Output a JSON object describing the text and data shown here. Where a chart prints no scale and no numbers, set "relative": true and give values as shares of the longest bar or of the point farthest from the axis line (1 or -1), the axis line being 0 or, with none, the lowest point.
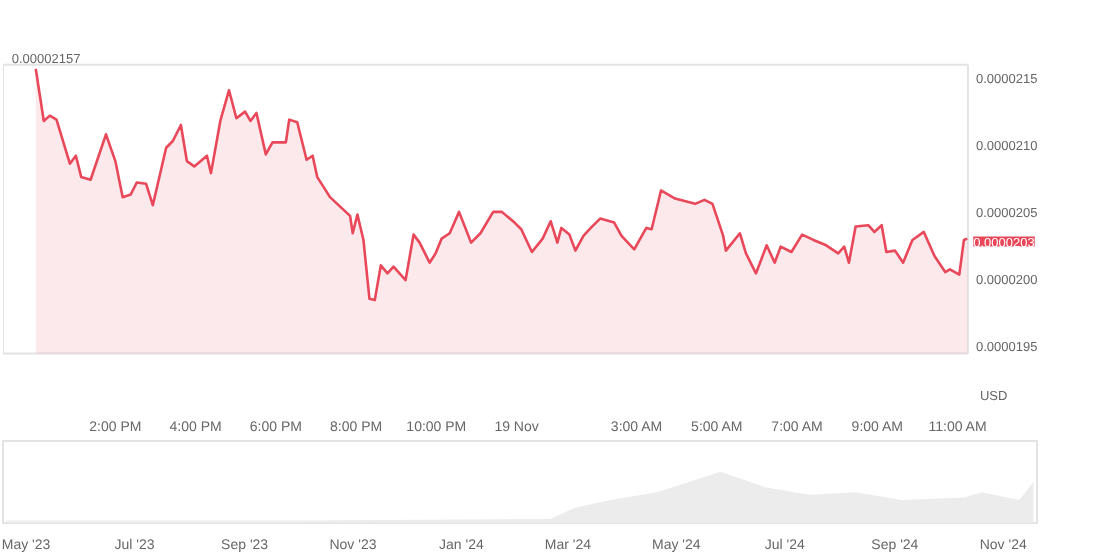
{
  "chart_data": [
    {
      "type": "area",
      "x": [
        "2024-11-18T12:01",
        "2024-11-18T12:13",
        "2024-11-18T12:22",
        "2024-11-18T12:32",
        "2024-11-18T12:52",
        "2024-11-18T13:01",
        "2024-11-18T13:09",
        "2024-11-18T13:23",
        "2024-11-18T13:46",
        "2024-11-18T14:00",
        "2024-11-18T14:11",
        "2024-11-18T14:23",
        "2024-11-18T14:32",
        "2024-11-18T14:46",
        "2024-11-18T14:56",
        "2024-11-18T15:16",
        "2024-11-18T15:26",
        "2024-11-18T15:38",
        "2024-11-18T15:47",
        "2024-11-18T15:58",
        "2024-11-18T16:17",
        "2024-11-18T16:23",
        "2024-11-18T16:37",
        "2024-11-18T16:50",
        "2024-11-18T17:01",
        "2024-11-18T17:14",
        "2024-11-18T17:22",
        "2024-11-18T17:31",
        "2024-11-18T17:45",
        "2024-11-18T17:55",
        "2024-11-18T18:15",
        "2024-11-18T18:20",
        "2024-11-18T18:32",
        "2024-11-18T18:46",
        "2024-11-18T18:55",
        "2024-11-18T19:02",
        "2024-11-18T19:21",
        "2024-11-18T19:51",
        "2024-11-18T19:55",
        "2024-11-18T20:02",
        "2024-11-18T20:11",
        "2024-11-18T20:20",
        "2024-11-18T20:28",
        "2024-11-18T20:37",
        "2024-11-18T20:47",
        "2024-11-18T20:56",
        "2024-11-18T21:14",
        "2024-11-18T21:26",
        "2024-11-18T21:35",
        "2024-11-18T21:50",
        "2024-11-18T21:59",
        "2024-11-18T22:08",
        "2024-11-18T22:20",
        "2024-11-18T22:34",
        "2024-11-18T22:52",
        "2024-11-18T23:06",
        "2024-11-18T23:25",
        "2024-11-18T23:38",
        "2024-11-18T23:57",
        "2024-11-19T00:07",
        "2024-11-19T00:23",
        "2024-11-19T00:39",
        "2024-11-19T00:51",
        "2024-11-19T01:01",
        "2024-11-19T01:07",
        "2024-11-19T01:19",
        "2024-11-19T01:28",
        "2024-11-19T01:40",
        "2024-11-19T01:51",
        "2024-11-19T02:05",
        "2024-11-19T02:26",
        "2024-11-19T02:37",
        "2024-11-19T02:56",
        "2024-11-19T03:14",
        "2024-11-19T03:22",
        "2024-11-19T03:36",
        "2024-11-19T03:57",
        "2024-11-19T04:27",
        "2024-11-19T04:41",
        "2024-11-19T04:53",
        "2024-11-19T05:09",
        "2024-11-19T05:13",
        "2024-11-19T05:34",
        "2024-11-19T05:43",
        "2024-11-19T05:58",
        "2024-11-19T06:14",
        "2024-11-19T06:26",
        "2024-11-19T06:35",
        "2024-11-19T06:51",
        "2024-11-19T07:07",
        "2024-11-19T07:24",
        "2024-11-19T07:43",
        "2024-11-19T08:01",
        "2024-11-19T08:10",
        "2024-11-19T08:17",
        "2024-11-19T08:27",
        "2024-11-19T08:46",
        "2024-11-19T08:55",
        "2024-11-19T09:06",
        "2024-11-19T09:13",
        "2024-11-19T09:26",
        "2024-11-19T09:38",
        "2024-11-19T09:52",
        "2024-11-19T10:09",
        "2024-11-19T10:25",
        "2024-11-19T10:41",
        "2024-11-19T10:48",
        "2024-11-19T11:02",
        "2024-11-19T11:09",
        "2024-11-19T11:14"
      ],
      "series": [
        {
          "color": "#e8485a",
          "values": [
            2.157e-05,
            2.118e-05,
            2.122e-05,
            2.119e-05,
            2.086e-05,
            2.092e-05,
            2.076e-05,
            2.074e-05,
            2.108e-05,
            2.088e-05,
            2.061e-05,
            2.063e-05,
            2.072e-05,
            2.071e-05,
            2.055e-05,
            2.098e-05,
            2.103e-05,
            2.115e-05,
            2.088e-05,
            2.084e-05,
            2.092e-05,
            2.079e-05,
            2.118e-05,
            2.141e-05,
            2.12e-05,
            2.125e-05,
            2.118e-05,
            2.124e-05,
            2.093e-05,
            2.102e-05,
            2.102e-05,
            2.119e-05,
            2.117e-05,
            2.089e-05,
            2.092e-05,
            2.076e-05,
            2.061e-05,
            2.047e-05,
            2.034e-05,
            2.048e-05,
            2.029e-05,
            1.985e-05,
            1.984e-05,
            2.01e-05,
            2.004e-05,
            2.009e-05,
            1.999e-05,
            2.033e-05,
            2.027e-05,
            2.012e-05,
            2.019e-05,
            2.03e-05,
            2.034e-05,
            2.05e-05,
            2.027e-05,
            2.034e-05,
            2.05e-05,
            2.05e-05,
            2.042e-05,
            2.037e-05,
            2.02e-05,
            2.03e-05,
            2.043e-05,
            2.027e-05,
            2.038e-05,
            2.033e-05,
            2.021e-05,
            2.032e-05,
            2.038e-05,
            2.045e-05,
            2.042e-05,
            2.032e-05,
            2.022e-05,
            2.038e-05,
            2.037e-05,
            2.066e-05,
            2.06e-05,
            2.056e-05,
            2.059e-05,
            2.056e-05,
            2.032e-05,
            2.021e-05,
            2.034e-05,
            2.019e-05,
            2.004e-05,
            2.025e-05,
            2.012e-05,
            2.024e-05,
            2.02e-05,
            2.033e-05,
            2.029e-05,
            2.025e-05,
            2.019e-05,
            2.024e-05,
            2.012e-05,
            2.039e-05,
            2.04e-05,
            2.035e-05,
            2.04e-05,
            2.02e-05,
            2.021e-05,
            2.012e-05,
            2.029e-05,
            2.035e-05,
            2.017e-05,
            2.005e-05,
            2.007e-05,
            2.003e-05,
            2.029e-05,
            2.03e-05
          ]
        }
      ],
      "xlim": [
        "2024-11-18T11:12",
        "2024-11-19T11:15"
      ],
      "ylim": [
        1.944e-05,
        2.16e-05
      ],
      "xticks": [
        {
          "value": "2024-11-18T14:00",
          "label": "2:00 PM"
        },
        {
          "value": "2024-11-18T16:00",
          "label": "4:00 PM"
        },
        {
          "value": "2024-11-18T18:00",
          "label": "6:00 PM"
        },
        {
          "value": "2024-11-18T20:00",
          "label": "8:00 PM"
        },
        {
          "value": "2024-11-18T22:00",
          "label": "10:00 PM"
        },
        {
          "value": "2024-11-19T00:00",
          "label": "19 Nov"
        },
        {
          "value": "2024-11-19T03:00",
          "label": "3:00 AM"
        },
        {
          "value": "2024-11-19T05:00",
          "label": "5:00 AM"
        },
        {
          "value": "2024-11-19T07:00",
          "label": "7:00 AM"
        },
        {
          "value": "2024-11-19T09:00",
          "label": "9:00 AM"
        },
        {
          "value": "2024-11-19T11:00",
          "label": "11:00 AM"
        }
      ],
      "yticks": [
        {
          "value": 1.95e-05,
          "label": "0.0000195"
        },
        {
          "value": 2e-05,
          "label": "0.0000200"
        },
        {
          "value": 2.05e-05,
          "label": "0.0000205"
        },
        {
          "value": 2.1e-05,
          "label": "0.0000210"
        },
        {
          "value": 2.15e-05,
          "label": "0.0000215"
        }
      ],
      "grid": false,
      "annotations": [
        {
          "text": "0.00002157",
          "x": "2024-11-18T12:01",
          "y": 2.157e-05
        },
        {
          "text": "0.0000203",
          "x": "2024-11-19T11:14",
          "y": 2.03e-05
        },
        "USD"
      ]
    },
    {
      "type": "area",
      "relative": true,
      "tick_labels": "x",
      "x": [
        "2023-04-20",
        "2023-07-01",
        "2023-10-01",
        "2024-02-20",
        "2024-03-05",
        "2024-03-25",
        "2024-04-20",
        "2024-05-26",
        "2024-06-20",
        "2024-07-15",
        "2024-08-10",
        "2024-09-05",
        "2024-10-10",
        "2024-10-20",
        "2024-11-10",
        "2024-11-18"
      ],
      "series": [
        {
          "color": "#ececec",
          "values": [
            0.05,
            0.05,
            0.05,
            0.08,
            0.3,
            0.45,
            0.6,
            1,
            0.7,
            0.55,
            0.6,
            0.45,
            0.5,
            0.6,
            0.45,
            0.8
          ]
        }
      ],
      "xlim": [
        "2023-04-18",
        "2024-11-20"
      ],
      "xticks": [
        {
          "value": "2023-05-01",
          "label": "May '23"
        },
        {
          "value": "2023-07-01",
          "label": "Jul '23"
        },
        {
          "value": "2023-09-01",
          "label": "Sep '23"
        },
        {
          "value": "2023-11-01",
          "label": "Nov '23"
        },
        {
          "value": "2024-01-01",
          "label": "Jan '24"
        },
        {
          "value": "2024-03-01",
          "label": "Mar '24"
        },
        {
          "value": "2024-05-01",
          "label": "May '24"
        },
        {
          "value": "2024-07-01",
          "label": "Jul '24"
        },
        {
          "value": "2024-09-01",
          "label": "Sep '24"
        },
        {
          "value": "2024-11-01",
          "label": "Nov '24"
        }
      ],
      "grid": false
    }
  ]
}
